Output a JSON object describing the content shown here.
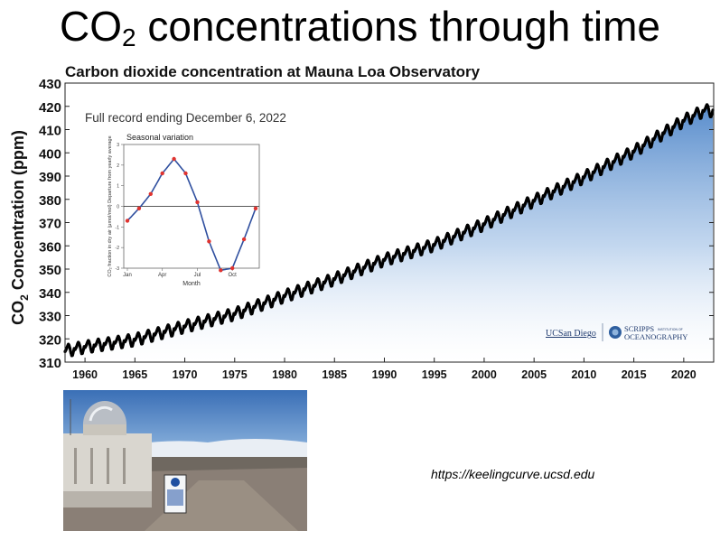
{
  "slide": {
    "title_prefix": "CO",
    "title_sub": "2",
    "title_suffix": " concentrations through time",
    "url": "https://keelingcurve.ucsd.edu"
  },
  "chart_data": [
    {
      "type": "line",
      "title": "Carbon dioxide concentration at Mauna Loa Observatory",
      "subtitle": "Full record ending December 6, 2022",
      "ylabel_prefix": "CO",
      "ylabel_sub": "2",
      "ylabel_suffix": " Concentration (ppm)",
      "xlabel": "",
      "xlim": [
        1958,
        2023
      ],
      "ylim": [
        310,
        430
      ],
      "x_ticks": [
        1960,
        1965,
        1970,
        1975,
        1980,
        1985,
        1990,
        1995,
        2000,
        2005,
        2010,
        2015,
        2020
      ],
      "y_ticks": [
        310,
        320,
        330,
        340,
        350,
        360,
        370,
        380,
        390,
        400,
        410,
        420,
        430
      ],
      "grid": false,
      "area_fill": "#5b8fcf",
      "point_color": "#000000",
      "annual_mean_ppm": {
        "x": [
          1958,
          1960,
          1965,
          1970,
          1975,
          1980,
          1985,
          1990,
          1995,
          2000,
          2005,
          2010,
          2015,
          2020,
          2022
        ],
        "y": [
          315.2,
          316.9,
          320.0,
          325.7,
          331.1,
          338.8,
          346.1,
          354.4,
          360.8,
          369.7,
          379.8,
          389.9,
          401.0,
          414.2,
          418.5
        ]
      },
      "seasonal_amplitude_ppm": 3
    },
    {
      "type": "line",
      "title": "Seasonal variation",
      "xlabel": "Month",
      "ylabel": "CO₂ fraction in dry air (μmol/mol) Departure from yearly average",
      "x_tick_labels": [
        "Jan",
        "Apr",
        "Jul",
        "Oct"
      ],
      "y_ticks": [
        -3,
        -2,
        -1,
        0,
        1,
        2,
        3
      ],
      "ylim": [
        -3,
        3
      ],
      "months": [
        1,
        2,
        3,
        4,
        5,
        6,
        7,
        8,
        9,
        10,
        11,
        12
      ],
      "values": [
        -0.7,
        -0.1,
        0.6,
        1.6,
        2.3,
        1.6,
        0.2,
        -1.7,
        -3.1,
        -3.0,
        -1.6,
        -0.1
      ],
      "line_color": "#2f4f9f",
      "point_color": "#e0332f"
    }
  ],
  "logos": {
    "ucsd": "UCSan Diego",
    "scripps_line1": "SCRIPPS",
    "scripps_small": "INSTITUTION OF",
    "scripps_line2": "OCEANOGRAPHY"
  }
}
